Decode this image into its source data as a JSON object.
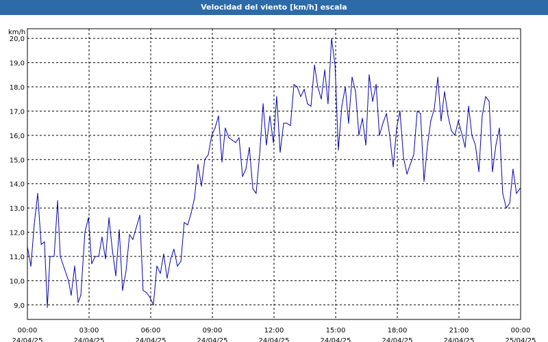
{
  "window": {
    "title": "Velocidad del viento [km/h] escala"
  },
  "colors": {
    "title_bar": "#2d6aa8",
    "series_line": "#0000b4",
    "grid": "#000000",
    "background": "#ffffff"
  },
  "chart_data": {
    "type": "line",
    "title": "Velocidad del viento [km/h] escala",
    "ylabel": "km/h",
    "xlabel": "",
    "ylim": [
      8.4,
      20.4
    ],
    "xlim": [
      0,
      24
    ],
    "y_ticks": [
      "9,0",
      "10,0",
      "11,0",
      "12,0",
      "13,0",
      "14,0",
      "15,0",
      "16,0",
      "17,0",
      "18,0",
      "19,0",
      "20,0"
    ],
    "y_tick_values": [
      9,
      10,
      11,
      12,
      13,
      14,
      15,
      16,
      17,
      18,
      19,
      20
    ],
    "x_ticks": [
      {
        "time": "00:00",
        "date": "24/04/25"
      },
      {
        "time": "03:00",
        "date": "24/04/25"
      },
      {
        "time": "06:00",
        "date": "24/04/25"
      },
      {
        "time": "09:00",
        "date": "24/04/25"
      },
      {
        "time": "12:00",
        "date": "24/04/25"
      },
      {
        "time": "15:00",
        "date": "24/04/25"
      },
      {
        "time": "18:00",
        "date": "24/04/25"
      },
      {
        "time": "21:00",
        "date": "24/04/25"
      },
      {
        "time": "00:00",
        "date": "25/04/25"
      }
    ],
    "x_tick_hours": [
      0,
      3,
      6,
      9,
      12,
      15,
      18,
      21,
      24
    ],
    "grid": true,
    "series": [
      {
        "values": [
          [
            0.0,
            11.4
          ],
          [
            0.17,
            10.6
          ],
          [
            0.33,
            12.3
          ],
          [
            0.5,
            13.6
          ],
          [
            0.67,
            11.5
          ],
          [
            0.83,
            11.6
          ],
          [
            0.97,
            8.9
          ],
          [
            1.1,
            11.0
          ],
          [
            1.3,
            11.0
          ],
          [
            1.47,
            13.3
          ],
          [
            1.6,
            11.0
          ],
          [
            1.8,
            10.5
          ],
          [
            2.0,
            10.0
          ],
          [
            2.13,
            9.4
          ],
          [
            2.3,
            10.6
          ],
          [
            2.47,
            9.1
          ],
          [
            2.6,
            9.4
          ],
          [
            2.8,
            12.0
          ],
          [
            2.97,
            12.6
          ],
          [
            3.13,
            10.7
          ],
          [
            3.3,
            11.0
          ],
          [
            3.47,
            11.0
          ],
          [
            3.63,
            11.8
          ],
          [
            3.8,
            10.9
          ],
          [
            3.97,
            12.6
          ],
          [
            4.13,
            11.3
          ],
          [
            4.3,
            10.2
          ],
          [
            4.47,
            12.1
          ],
          [
            4.63,
            9.6
          ],
          [
            4.8,
            10.4
          ],
          [
            4.97,
            11.9
          ],
          [
            5.13,
            11.7
          ],
          [
            5.3,
            12.2
          ],
          [
            5.47,
            12.7
          ],
          [
            5.63,
            9.6
          ],
          [
            5.8,
            9.5
          ],
          [
            5.97,
            9.3
          ],
          [
            6.13,
            9.0
          ],
          [
            6.3,
            10.6
          ],
          [
            6.47,
            10.3
          ],
          [
            6.63,
            11.1
          ],
          [
            6.8,
            10.1
          ],
          [
            6.97,
            10.9
          ],
          [
            7.13,
            11.3
          ],
          [
            7.3,
            10.6
          ],
          [
            7.47,
            10.8
          ],
          [
            7.63,
            12.4
          ],
          [
            7.8,
            12.3
          ],
          [
            7.97,
            12.8
          ],
          [
            8.13,
            13.4
          ],
          [
            8.3,
            14.8
          ],
          [
            8.47,
            13.9
          ],
          [
            8.63,
            15.0
          ],
          [
            8.8,
            15.2
          ],
          [
            8.97,
            16.0
          ],
          [
            9.13,
            16.3
          ],
          [
            9.3,
            16.8
          ],
          [
            9.47,
            14.9
          ],
          [
            9.63,
            16.3
          ],
          [
            9.8,
            15.9
          ],
          [
            9.97,
            15.8
          ],
          [
            10.13,
            15.7
          ],
          [
            10.3,
            15.9
          ],
          [
            10.47,
            14.3
          ],
          [
            10.63,
            14.6
          ],
          [
            10.8,
            15.5
          ],
          [
            10.97,
            13.8
          ],
          [
            11.13,
            13.6
          ],
          [
            11.3,
            15.2
          ],
          [
            11.47,
            17.3
          ],
          [
            11.63,
            15.6
          ],
          [
            11.8,
            16.8
          ],
          [
            11.97,
            15.7
          ],
          [
            12.13,
            17.6
          ],
          [
            12.3,
            15.3
          ],
          [
            12.47,
            16.5
          ],
          [
            12.63,
            16.5
          ],
          [
            12.8,
            16.4
          ],
          [
            12.97,
            18.1
          ],
          [
            13.13,
            18.0
          ],
          [
            13.3,
            17.6
          ],
          [
            13.47,
            17.9
          ],
          [
            13.63,
            17.3
          ],
          [
            13.8,
            17.2
          ],
          [
            13.97,
            18.9
          ],
          [
            14.13,
            18.0
          ],
          [
            14.3,
            17.5
          ],
          [
            14.47,
            18.7
          ],
          [
            14.63,
            17.3
          ],
          [
            14.8,
            20.0
          ],
          [
            14.97,
            18.9
          ],
          [
            15.13,
            15.4
          ],
          [
            15.3,
            17.2
          ],
          [
            15.47,
            18.0
          ],
          [
            15.63,
            16.5
          ],
          [
            15.8,
            18.4
          ],
          [
            15.97,
            17.8
          ],
          [
            16.13,
            16.0
          ],
          [
            16.3,
            16.7
          ],
          [
            16.47,
            15.6
          ],
          [
            16.63,
            18.5
          ],
          [
            16.8,
            17.4
          ],
          [
            16.97,
            18.1
          ],
          [
            17.13,
            16.0
          ],
          [
            17.3,
            16.5
          ],
          [
            17.47,
            16.9
          ],
          [
            17.63,
            16.0
          ],
          [
            17.8,
            14.7
          ],
          [
            17.97,
            16.3
          ],
          [
            18.13,
            17.0
          ],
          [
            18.3,
            15.1
          ],
          [
            18.47,
            14.4
          ],
          [
            18.63,
            14.8
          ],
          [
            18.8,
            15.2
          ],
          [
            18.97,
            17.0
          ],
          [
            19.13,
            16.9
          ],
          [
            19.3,
            14.1
          ],
          [
            19.47,
            15.6
          ],
          [
            19.63,
            16.6
          ],
          [
            19.8,
            17.1
          ],
          [
            19.97,
            18.4
          ],
          [
            20.13,
            16.6
          ],
          [
            20.3,
            17.8
          ],
          [
            20.47,
            16.8
          ],
          [
            20.63,
            16.2
          ],
          [
            20.8,
            16.0
          ],
          [
            20.97,
            16.6
          ],
          [
            21.13,
            16.1
          ],
          [
            21.3,
            15.5
          ],
          [
            21.47,
            17.2
          ],
          [
            21.63,
            16.0
          ],
          [
            21.8,
            15.6
          ],
          [
            21.97,
            14.5
          ],
          [
            22.13,
            16.8
          ],
          [
            22.3,
            17.6
          ],
          [
            22.47,
            17.4
          ],
          [
            22.63,
            14.5
          ],
          [
            22.8,
            15.6
          ],
          [
            22.97,
            16.3
          ],
          [
            23.13,
            13.6
          ],
          [
            23.3,
            13.0
          ],
          [
            23.47,
            13.2
          ],
          [
            23.63,
            14.6
          ],
          [
            23.8,
            13.6
          ],
          [
            23.97,
            13.8
          ]
        ]
      }
    ]
  }
}
